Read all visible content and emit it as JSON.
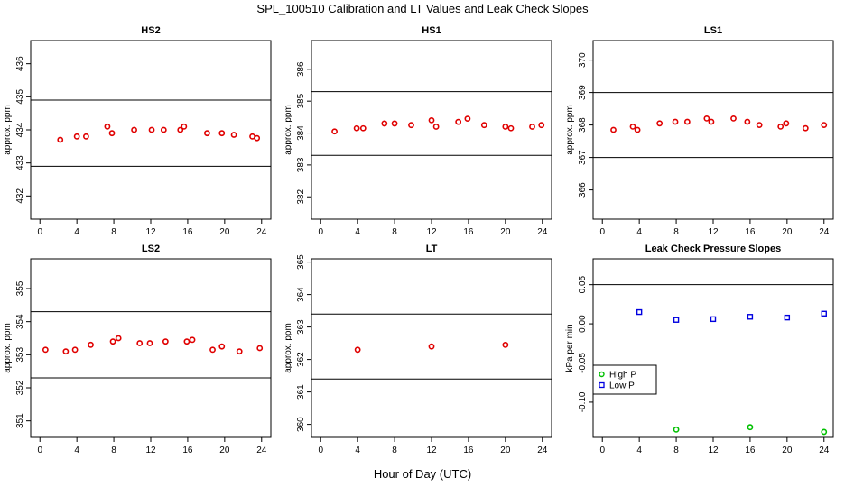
{
  "figure": {
    "title": "SPL_100510  Calibration and LT Values and Leak Check Slopes",
    "xlabel": "Hour of Day (UTC)"
  },
  "colors": {
    "calibration_points": "#e00000",
    "high_p": "#00c000",
    "low_p": "#0000e0",
    "frame": "#000000"
  },
  "chart_data": [
    {
      "type": "scatter",
      "title": "HS2",
      "ylabel": "approx. ppm",
      "xlim": [
        -1,
        25
      ],
      "ylim": [
        431.3,
        436.7
      ],
      "xticks": [
        0,
        4,
        8,
        12,
        16,
        20,
        24
      ],
      "yticks": [
        432,
        433,
        434,
        435,
        436
      ],
      "hlines": [
        432.9,
        434.9
      ],
      "series": [
        {
          "marker": "circle",
          "color": "#e00000",
          "x": [
            2.2,
            4.0,
            5.0,
            7.3,
            7.8,
            10.2,
            12.1,
            13.4,
            15.2,
            15.6,
            18.1,
            19.7,
            21.0,
            23.0,
            23.5
          ],
          "y": [
            433.7,
            433.8,
            433.8,
            434.1,
            433.9,
            434.0,
            434.0,
            434.0,
            434.0,
            434.1,
            433.9,
            433.9,
            433.85,
            433.8,
            433.75
          ]
        }
      ]
    },
    {
      "type": "scatter",
      "title": "HS1",
      "ylabel": "approx. ppm",
      "xlim": [
        -1,
        25
      ],
      "ylim": [
        381.3,
        386.9
      ],
      "xticks": [
        0,
        4,
        8,
        12,
        16,
        20,
        24
      ],
      "yticks": [
        382,
        383,
        384,
        385,
        386
      ],
      "hlines": [
        383.3,
        385.3
      ],
      "series": [
        {
          "marker": "circle",
          "color": "#e00000",
          "x": [
            1.5,
            3.9,
            4.6,
            6.9,
            8.0,
            9.8,
            12.0,
            12.5,
            14.9,
            15.9,
            17.7,
            20.0,
            20.6,
            22.9,
            23.9
          ],
          "y": [
            384.05,
            384.15,
            384.15,
            384.3,
            384.3,
            384.25,
            384.4,
            384.2,
            384.35,
            384.45,
            384.25,
            384.2,
            384.15,
            384.2,
            384.25
          ]
        }
      ]
    },
    {
      "type": "scatter",
      "title": "LS1",
      "ylabel": "approx. ppm",
      "xlim": [
        -1,
        25
      ],
      "ylim": [
        365.1,
        370.6
      ],
      "xticks": [
        0,
        4,
        8,
        12,
        16,
        20,
        24
      ],
      "yticks": [
        366,
        367,
        368,
        369,
        370
      ],
      "hlines": [
        367.0,
        369.0
      ],
      "series": [
        {
          "marker": "circle",
          "color": "#e00000",
          "x": [
            1.2,
            3.3,
            3.8,
            6.2,
            7.9,
            9.2,
            11.3,
            11.8,
            14.2,
            15.7,
            17.0,
            19.3,
            19.9,
            22.0,
            24.0
          ],
          "y": [
            367.85,
            367.95,
            367.85,
            368.05,
            368.1,
            368.1,
            368.2,
            368.1,
            368.2,
            368.1,
            368.0,
            367.95,
            368.05,
            367.9,
            368.0
          ]
        }
      ]
    },
    {
      "type": "scatter",
      "title": "LS2",
      "ylabel": "approx. ppm",
      "xlim": [
        -1,
        25
      ],
      "ylim": [
        350.5,
        355.9
      ],
      "xticks": [
        0,
        4,
        8,
        12,
        16,
        20,
        24
      ],
      "yticks": [
        351,
        352,
        353,
        354,
        355
      ],
      "hlines": [
        352.3,
        354.3
      ],
      "series": [
        {
          "marker": "circle",
          "color": "#e00000",
          "x": [
            0.6,
            2.8,
            3.8,
            5.5,
            7.9,
            8.5,
            10.8,
            11.9,
            13.6,
            15.9,
            16.5,
            18.7,
            19.7,
            21.6,
            23.8
          ],
          "y": [
            353.15,
            353.1,
            353.15,
            353.3,
            353.4,
            353.5,
            353.35,
            353.35,
            353.4,
            353.4,
            353.45,
            353.15,
            353.25,
            353.1,
            353.2
          ]
        }
      ]
    },
    {
      "type": "scatter",
      "title": "LT",
      "ylabel": "approx. ppm",
      "xlim": [
        -1,
        25
      ],
      "ylim": [
        359.6,
        365.1
      ],
      "xticks": [
        0,
        4,
        8,
        12,
        16,
        20,
        24
      ],
      "yticks": [
        360,
        361,
        362,
        363,
        364,
        365
      ],
      "hlines": [
        361.4,
        363.4
      ],
      "series": [
        {
          "marker": "circle",
          "color": "#e00000",
          "x": [
            4.0,
            12.0,
            20.0
          ],
          "y": [
            362.3,
            362.4,
            362.45
          ]
        }
      ]
    },
    {
      "type": "scatter",
      "title": "Leak Check Pressure Slopes",
      "ylabel": "kPa per min",
      "xlim": [
        -1,
        25
      ],
      "ylim": [
        -0.145,
        0.083
      ],
      "xticks": [
        0,
        4,
        8,
        12,
        16,
        20,
        24
      ],
      "yticks": [
        -0.1,
        -0.05,
        0.0,
        0.05
      ],
      "ytick_labels": [
        "-0.10",
        "-0.05",
        "0.00",
        "0.05"
      ],
      "hlines": [
        -0.05,
        0.05
      ],
      "legend": {
        "position": "left",
        "entries": [
          "High P",
          "Low P"
        ]
      },
      "series": [
        {
          "name": "High P",
          "marker": "circle",
          "color": "#00c000",
          "x": [
            8,
            16,
            24
          ],
          "y": [
            -0.135,
            -0.132,
            -0.138
          ]
        },
        {
          "name": "Low P",
          "marker": "square",
          "color": "#0000e0",
          "x": [
            4,
            8,
            12,
            16,
            20,
            24
          ],
          "y": [
            0.015,
            0.005,
            0.006,
            0.009,
            0.008,
            0.013
          ]
        }
      ]
    }
  ]
}
